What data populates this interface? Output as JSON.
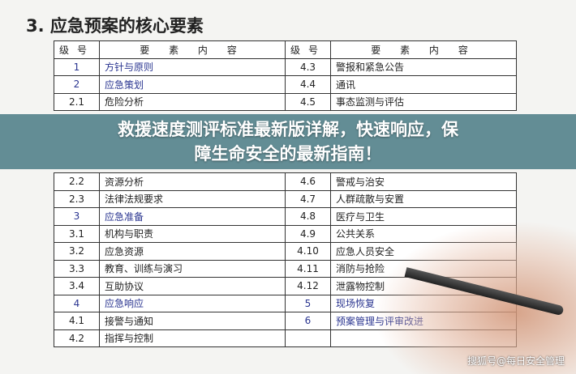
{
  "title": "3. 应急预案的核心要素",
  "table": {
    "header": [
      "级号",
      "要 素 内 容",
      "级号",
      "要 素 内 容"
    ],
    "rows": [
      [
        "1",
        "方针与原则",
        "4.3",
        "警报和紧急公告"
      ],
      [
        "2",
        "应急策划",
        "4.4",
        "通讯"
      ],
      [
        "2.1",
        "危险分析",
        "4.5",
        "事态监测与评估"
      ],
      [
        "2.2",
        "资源分析",
        "4.6",
        "警戒与治安"
      ],
      [
        "2.3",
        "法律法规要求",
        "4.7",
        "人群疏散与安置"
      ],
      [
        "3",
        "应急准备",
        "4.8",
        "医疗与卫生"
      ],
      [
        "3.1",
        "机构与职责",
        "4.9",
        "公共关系"
      ],
      [
        "3.2",
        "应急资源",
        "4.10",
        "应急人员安全"
      ],
      [
        "3.3",
        "教育、训练与演习",
        "4.11",
        "消防与抢险"
      ],
      [
        "3.4",
        "互助协议",
        "4.12",
        "泄露物控制"
      ],
      [
        "4",
        "应急响应",
        "5",
        "现场恢复"
      ],
      [
        "4.1",
        "接警与通知",
        "6",
        "预案管理与评审改进"
      ],
      [
        "4.2",
        "指挥与控制",
        "",
        ""
      ]
    ],
    "blue_left": [
      0,
      1,
      5,
      10
    ],
    "blue_right": [
      10,
      11
    ]
  },
  "banner": {
    "line1": "救援速度测评标准最新版详解，快速响应，保",
    "line2": "障生命安全的最新指南！"
  },
  "watermark": "搜狐号@每日安全管理",
  "colors": {
    "banner": "#4e7e88",
    "heading_blue": "#2a3590"
  }
}
